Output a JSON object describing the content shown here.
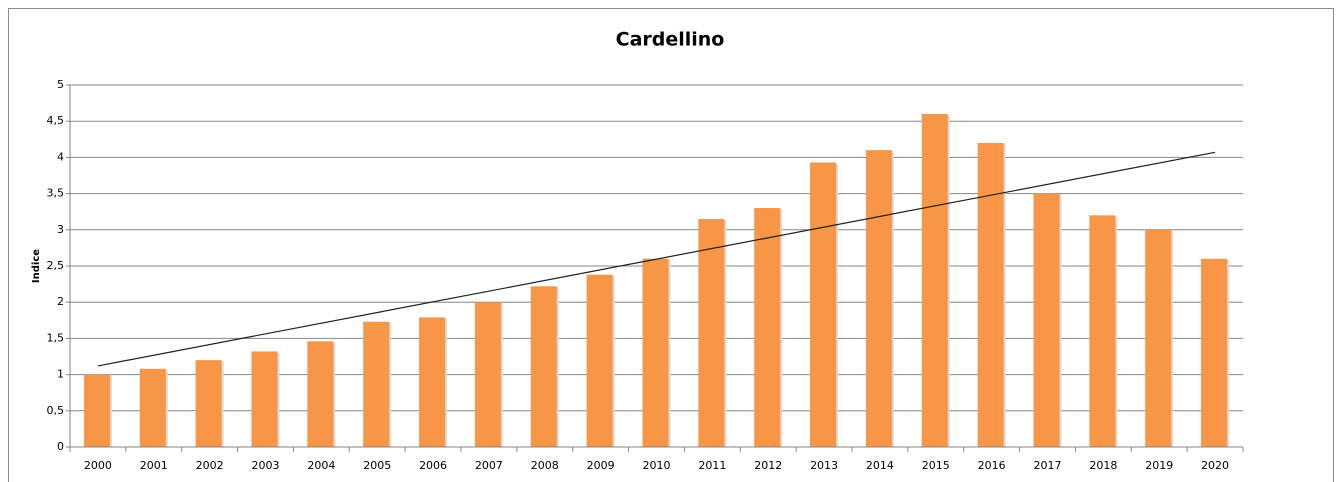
{
  "chart_data": {
    "type": "bar",
    "title": "Cardellino",
    "y_label": "Indice",
    "categories": [
      "2000",
      "2001",
      "2002",
      "2003",
      "2004",
      "2005",
      "2006",
      "2007",
      "2008",
      "2009",
      "2010",
      "2011",
      "2012",
      "2013",
      "2014",
      "2015",
      "2016",
      "2017",
      "2018",
      "2019",
      "2020"
    ],
    "values": [
      1.0,
      1.08,
      1.2,
      1.32,
      1.46,
      1.73,
      1.79,
      2.0,
      2.22,
      2.38,
      2.6,
      3.15,
      3.3,
      3.93,
      4.1,
      4.6,
      4.2,
      3.5,
      3.2,
      3.0,
      2.6
    ],
    "color": "#f79646",
    "trendline": [
      1.12,
      4.07
    ],
    "trendline_color": "#1f1f1f",
    "ylim": [
      0,
      5
    ],
    "yticks": [
      0,
      {
        "value": 0.5,
        "label": "0,5"
      },
      1,
      {
        "value": 1.5,
        "label": "1,5"
      },
      2,
      {
        "value": 2.5,
        "label": "2,5"
      },
      3,
      {
        "value": 3.5,
        "label": "3,5"
      },
      4,
      {
        "value": 4.5,
        "label": "4,5"
      },
      5
    ],
    "grid": true
  }
}
